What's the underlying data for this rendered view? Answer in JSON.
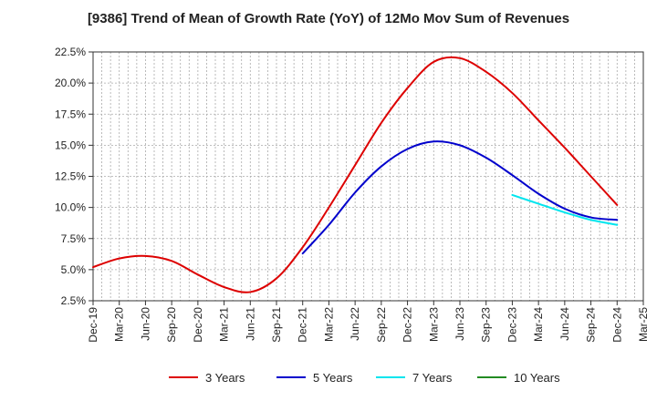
{
  "chart_data": {
    "type": "line",
    "title": "[9386]  Trend of Mean of Growth Rate (YoY) of 12Mo Mov Sum of Revenues",
    "xlabel": "",
    "ylabel": "",
    "categories": [
      "Dec-19",
      "Mar-20",
      "Jun-20",
      "Sep-20",
      "Dec-20",
      "Mar-21",
      "Jun-21",
      "Sep-21",
      "Dec-21",
      "Mar-22",
      "Jun-22",
      "Sep-22",
      "Dec-22",
      "Mar-23",
      "Jun-23",
      "Sep-23",
      "Dec-23",
      "Mar-24",
      "Jun-24",
      "Sep-24",
      "Dec-24",
      "Mar-25"
    ],
    "y_tick_labels": [
      "2.5%",
      "5.0%",
      "7.5%",
      "10.0%",
      "12.5%",
      "15.0%",
      "17.5%",
      "20.0%",
      "22.5%"
    ],
    "ylim": [
      2.5,
      22.5
    ],
    "grid": true,
    "legend_position": "bottom",
    "series": [
      {
        "name": "3 Years",
        "color": "#dd0000",
        "values": [
          5.2,
          5.9,
          6.1,
          5.7,
          4.6,
          3.6,
          3.2,
          4.3,
          6.8,
          10.0,
          13.4,
          16.8,
          19.6,
          21.7,
          22.0,
          20.9,
          19.2,
          17.0,
          14.8,
          12.5,
          10.2,
          null
        ]
      },
      {
        "name": "5 Years",
        "color": "#0000cc",
        "values": [
          null,
          null,
          null,
          null,
          null,
          null,
          null,
          null,
          6.3,
          8.6,
          11.2,
          13.3,
          14.7,
          15.3,
          15.0,
          14.0,
          12.6,
          11.1,
          9.9,
          9.2,
          9.0,
          null
        ]
      },
      {
        "name": "7 Years",
        "color": "#00e5ee",
        "values": [
          null,
          null,
          null,
          null,
          null,
          null,
          null,
          null,
          null,
          null,
          null,
          null,
          null,
          null,
          null,
          null,
          11.0,
          10.3,
          9.6,
          9.0,
          8.6,
          null
        ]
      },
      {
        "name": "10 Years",
        "color": "#228b22",
        "values": [
          null,
          null,
          null,
          null,
          null,
          null,
          null,
          null,
          null,
          null,
          null,
          null,
          null,
          null,
          null,
          null,
          null,
          null,
          null,
          null,
          null,
          null
        ]
      }
    ]
  }
}
